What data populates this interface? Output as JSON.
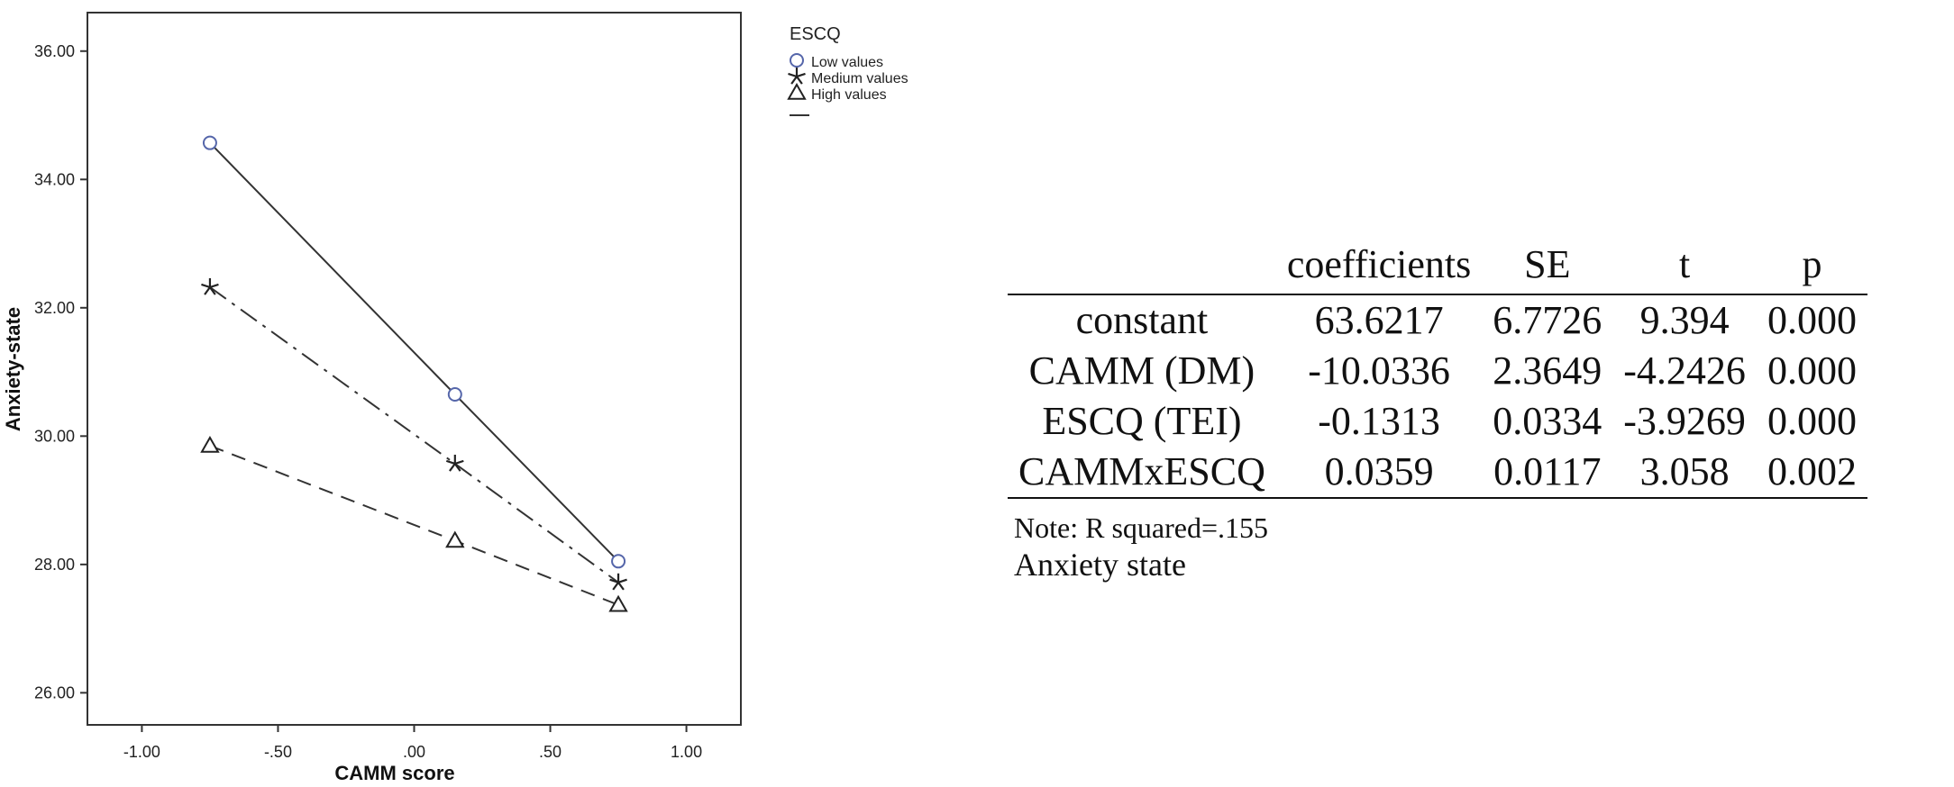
{
  "chart_data": {
    "type": "line",
    "xlabel": "CAMM score",
    "ylabel": "Anxiety-state",
    "xlim": [
      -1.2,
      1.2
    ],
    "ylim": [
      25.5,
      36.6
    ],
    "xticks": [
      -1.0,
      -0.5,
      0.0,
      0.5,
      1.0
    ],
    "xtick_labels": [
      "-1.00",
      "-.50",
      ".00",
      ".50",
      "1.00"
    ],
    "yticks": [
      26,
      28,
      30,
      32,
      34,
      36
    ],
    "ytick_labels": [
      "26.00",
      "28.00",
      "30.00",
      "32.00",
      "34.00",
      "36.00"
    ],
    "grid": false,
    "legend_title": "ESCQ",
    "legend_position": "outside-top-right",
    "series": [
      {
        "name": "Low values",
        "marker": "circle",
        "line_style": "solid",
        "color": "#5566aa",
        "x": [
          -0.75,
          0.15,
          0.75
        ],
        "y": [
          34.57,
          30.65,
          28.05
        ]
      },
      {
        "name": "Medium values",
        "marker": "star",
        "line_style": "dash-dot",
        "color": "#222222",
        "x": [
          -0.75,
          0.15,
          0.75
        ],
        "y": [
          32.32,
          29.57,
          27.72
        ]
      },
      {
        "name": "High values",
        "marker": "triangle",
        "line_style": "dashed",
        "color": "#222222",
        "x": [
          -0.75,
          0.15,
          0.75
        ],
        "y": [
          29.85,
          28.37,
          27.37
        ]
      }
    ]
  },
  "table": {
    "headers": [
      "",
      "coefficients",
      "SE",
      "t",
      "p"
    ],
    "rows": [
      [
        "constant",
        "63.6217",
        "6.7726",
        "9.394",
        "0.000"
      ],
      [
        "CAMM (DM)",
        "-10.0336",
        "2.3649",
        "-4.2426",
        "0.000"
      ],
      [
        "ESCQ (TEI)",
        "-0.1313",
        "0.0334",
        "-3.9269",
        "0.000"
      ],
      [
        "CAMMxESCQ",
        "0.0359",
        "0.0117",
        "3.058",
        "0.002"
      ]
    ],
    "note": "Note: R squared=.155",
    "caption": "Anxiety state"
  }
}
